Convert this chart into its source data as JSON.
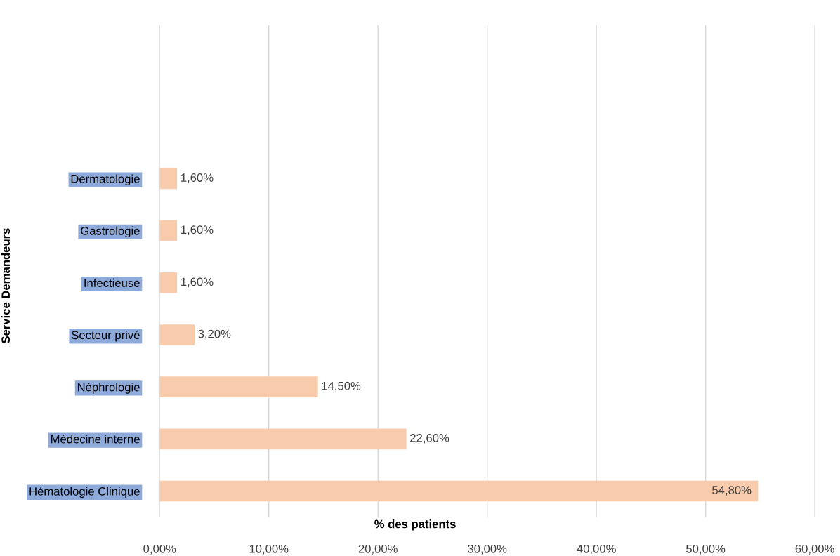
{
  "chart_data": {
    "type": "bar",
    "orientation": "horizontal",
    "xlabel": "% des patients",
    "ylabel": "Service Demandeurs",
    "categories": [
      "Dermatologie",
      "Gastrologie",
      "Infectieuse",
      "Secteur privé",
      "Néphrologie",
      "Médecine interne",
      "Hématologie Clinique"
    ],
    "values": [
      1.6,
      1.6,
      1.6,
      3.2,
      14.5,
      22.6,
      54.8
    ],
    "value_labels": [
      "1,60%",
      "1,60%",
      "1,60%",
      "3,20%",
      "14,50%",
      "22,60%",
      "54,80%"
    ],
    "color": "#f8cbad",
    "xlim": [
      0,
      60
    ],
    "xticks": [
      {
        "value": 0,
        "label": "0,00%"
      },
      {
        "value": 10,
        "label": "10,00%"
      },
      {
        "value": 20,
        "label": "20,00%"
      },
      {
        "value": 30,
        "label": "30,00%"
      },
      {
        "value": 40,
        "label": "40,00%"
      },
      {
        "value": 50,
        "label": "50,00%"
      },
      {
        "value": 60,
        "label": "60,00%"
      }
    ],
    "grid": "x",
    "legend": false
  }
}
